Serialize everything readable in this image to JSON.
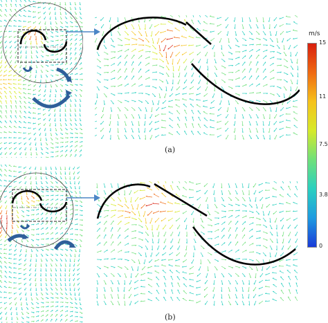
{
  "figure": {
    "captions": [
      "(a)",
      "(b)"
    ],
    "colorbar": {
      "unit": "m/s",
      "ticks": [
        "15",
        "11",
        "7.5",
        "3.8",
        "0"
      ],
      "tick_values": [
        15,
        11,
        7.5,
        3.8,
        0
      ],
      "min": 0,
      "max": 15,
      "colors": [
        "#1a3bd8",
        "#1e9be0",
        "#2ad0c0",
        "#6fe07a",
        "#d6ea2a",
        "#f6c21b",
        "#ef6a12",
        "#d81f0e"
      ]
    },
    "colors": {
      "blade": "#000000",
      "arrow_outline": "#3b6fb0",
      "zoom_box": "#2a2a2a",
      "link_arrow": "#4c86c6"
    }
  }
}
